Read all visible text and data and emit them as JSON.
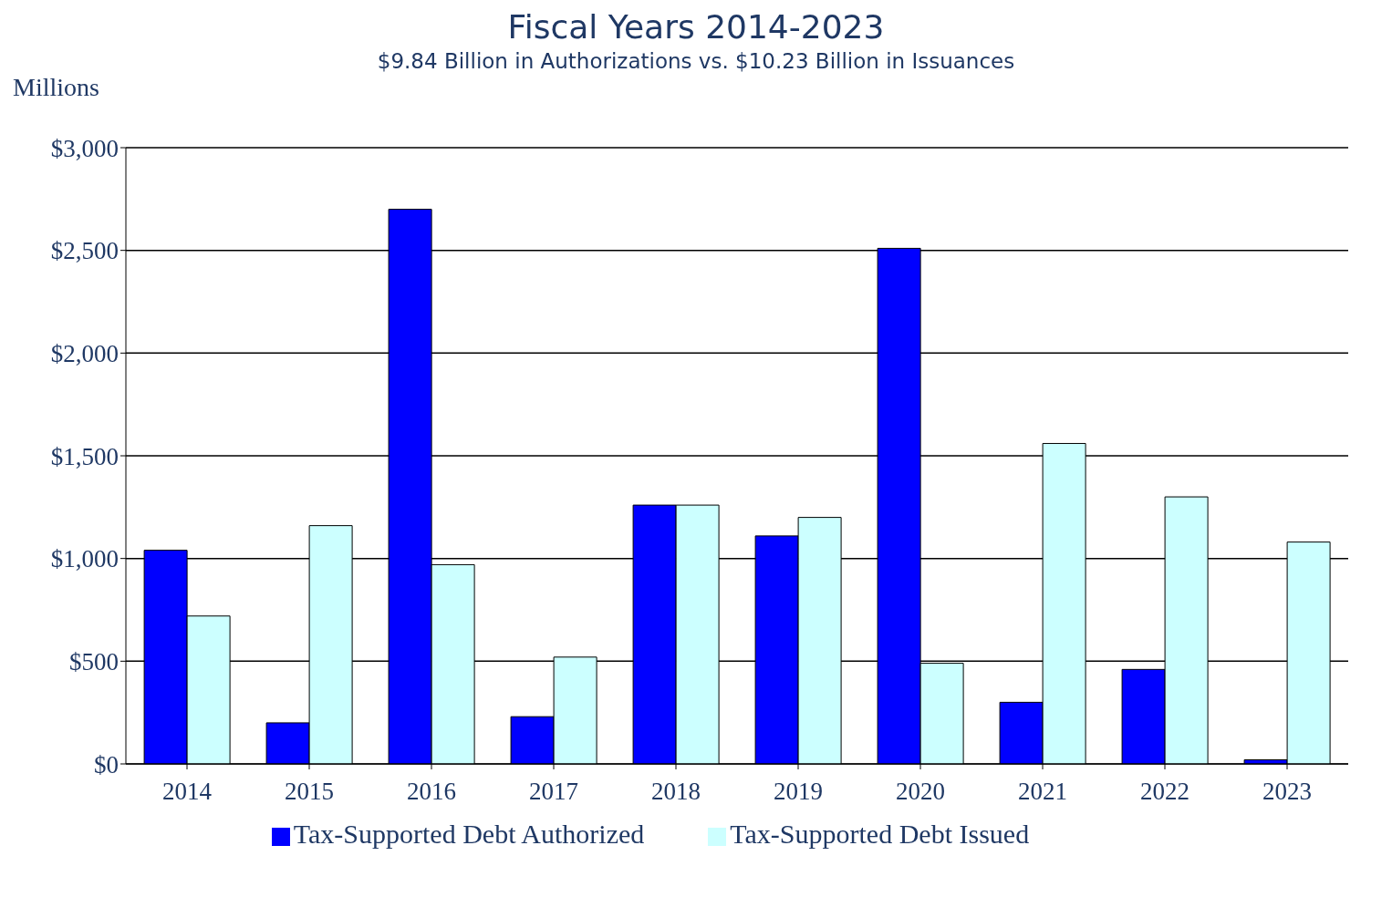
{
  "chart_data": {
    "type": "bar",
    "title": "Fiscal Years 2014-2023",
    "subtitle": "$9.84 Billion in Authorizations vs. $10.23 Billion in Issuances",
    "ylabel": "Millions",
    "categories": [
      "2014",
      "2015",
      "2016",
      "2017",
      "2018",
      "2019",
      "2020",
      "2021",
      "2022",
      "2023"
    ],
    "series": [
      {
        "name": "Tax-Supported Debt Authorized",
        "color": "#0000ff",
        "values": [
          1040,
          200,
          2700,
          230,
          1260,
          1110,
          2510,
          300,
          460,
          20
        ]
      },
      {
        "name": "Tax-Supported Debt Issued",
        "color": "#ccffff",
        "values": [
          720,
          1160,
          970,
          520,
          1260,
          1200,
          490,
          1560,
          1300,
          1080
        ]
      }
    ],
    "ylim": [
      0,
      3000
    ],
    "yticks": [
      {
        "value": 0,
        "label": "$0"
      },
      {
        "value": 500,
        "label": "$500"
      },
      {
        "value": 1000,
        "label": "$1,000"
      },
      {
        "value": 1500,
        "label": "$1,500"
      },
      {
        "value": 2000,
        "label": "$2,000"
      },
      {
        "value": 2500,
        "label": "$2,500"
      },
      {
        "value": 3000,
        "label": "$3,000"
      }
    ],
    "grid": "y",
    "legend": "bottom"
  }
}
